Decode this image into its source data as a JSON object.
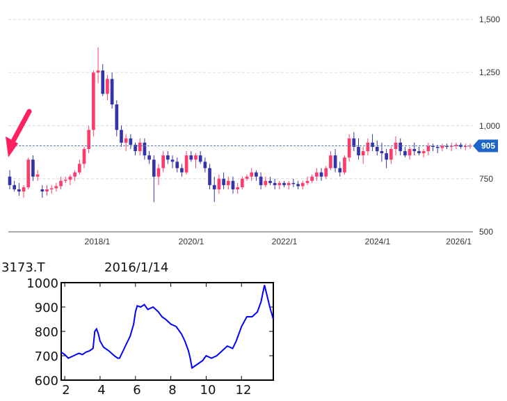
{
  "chart_data": [
    {
      "type": "candlestick",
      "x_ticks": [
        "2018/1",
        "2020/1",
        "2022/1",
        "2024/1",
        "2026/1"
      ],
      "y_ticks": [
        "1,500",
        "1,250",
        "1,000",
        "750",
        "500"
      ],
      "ylim": [
        500,
        1500
      ],
      "grid": true,
      "current_price_label": "905",
      "current_price": 905,
      "colors": {
        "up": "#ff3b6b",
        "down": "#3333aa",
        "current_line": "#4a7bd0",
        "badge": "#1f64c8",
        "arrow": "#ff2060"
      },
      "candles": [
        [
          760,
          790,
          700,
          720
        ],
        [
          720,
          740,
          690,
          700
        ],
        [
          700,
          730,
          670,
          690
        ],
        [
          690,
          720,
          660,
          710
        ],
        [
          710,
          850,
          700,
          840
        ],
        [
          840,
          860,
          740,
          760
        ],
        [
          760,
          790,
          740,
          770
        ],
        [
          700,
          720,
          660,
          690
        ],
        [
          690,
          720,
          670,
          700
        ],
        [
          700,
          720,
          680,
          705
        ],
        [
          705,
          730,
          690,
          715
        ],
        [
          715,
          760,
          700,
          740
        ],
        [
          740,
          760,
          730,
          745
        ],
        [
          745,
          770,
          720,
          760
        ],
        [
          760,
          790,
          740,
          780
        ],
        [
          780,
          840,
          770,
          820
        ],
        [
          820,
          900,
          800,
          890
        ],
        [
          890,
          1000,
          870,
          980
        ],
        [
          980,
          1260,
          950,
          1250
        ],
        [
          1250,
          1370,
          1200,
          1260
        ],
        [
          1260,
          1290,
          1140,
          1150
        ],
        [
          1150,
          1240,
          1120,
          1220
        ],
        [
          1220,
          1250,
          1080,
          1100
        ],
        [
          1100,
          1120,
          950,
          980
        ],
        [
          980,
          1000,
          900,
          920
        ],
        [
          920,
          960,
          880,
          940
        ],
        [
          940,
          960,
          890,
          910
        ],
        [
          910,
          920,
          860,
          880
        ],
        [
          880,
          940,
          860,
          920
        ],
        [
          920,
          940,
          840,
          860
        ],
        [
          860,
          880,
          820,
          840
        ],
        [
          840,
          860,
          640,
          760
        ],
        [
          760,
          820,
          720,
          800
        ],
        [
          800,
          880,
          780,
          860
        ],
        [
          860,
          880,
          820,
          840
        ],
        [
          840,
          860,
          800,
          830
        ],
        [
          830,
          850,
          780,
          800
        ],
        [
          800,
          820,
          760,
          780
        ],
        [
          780,
          880,
          770,
          860
        ],
        [
          860,
          880,
          830,
          840
        ],
        [
          840,
          870,
          800,
          860
        ],
        [
          860,
          880,
          820,
          830
        ],
        [
          830,
          850,
          780,
          800
        ],
        [
          800,
          820,
          700,
          720
        ],
        [
          720,
          760,
          640,
          700
        ],
        [
          700,
          770,
          680,
          750
        ],
        [
          750,
          780,
          700,
          720
        ],
        [
          720,
          760,
          700,
          740
        ],
        [
          740,
          760,
          680,
          700
        ],
        [
          700,
          730,
          680,
          710
        ],
        [
          710,
          760,
          700,
          750
        ],
        [
          750,
          770,
          740,
          760
        ],
        [
          760,
          800,
          740,
          780
        ],
        [
          780,
          790,
          740,
          760
        ],
        [
          760,
          780,
          700,
          720
        ],
        [
          720,
          760,
          710,
          740
        ],
        [
          740,
          760,
          720,
          730
        ],
        [
          730,
          750,
          700,
          720
        ],
        [
          720,
          740,
          700,
          730
        ],
        [
          730,
          740,
          710,
          720
        ],
        [
          720,
          740,
          700,
          730
        ],
        [
          730,
          750,
          710,
          725
        ],
        [
          725,
          740,
          700,
          715
        ],
        [
          715,
          740,
          700,
          730
        ],
        [
          730,
          760,
          720,
          740
        ],
        [
          740,
          770,
          730,
          760
        ],
        [
          760,
          800,
          740,
          780
        ],
        [
          780,
          800,
          740,
          760
        ],
        [
          760,
          810,
          750,
          800
        ],
        [
          800,
          880,
          790,
          860
        ],
        [
          860,
          890,
          780,
          800
        ],
        [
          800,
          830,
          760,
          780
        ],
        [
          780,
          860,
          770,
          850
        ],
        [
          850,
          960,
          830,
          940
        ],
        [
          940,
          970,
          880,
          900
        ],
        [
          900,
          940,
          840,
          860
        ],
        [
          860,
          900,
          820,
          880
        ],
        [
          880,
          940,
          860,
          920
        ],
        [
          920,
          960,
          880,
          900
        ],
        [
          900,
          930,
          860,
          880
        ],
        [
          880,
          920,
          830,
          870
        ],
        [
          870,
          890,
          800,
          840
        ],
        [
          840,
          900,
          820,
          890
        ],
        [
          890,
          950,
          860,
          920
        ],
        [
          920,
          940,
          860,
          880
        ],
        [
          880,
          900,
          850,
          860
        ],
        [
          860,
          900,
          840,
          890
        ],
        [
          890,
          920,
          860,
          880
        ],
        [
          880,
          900,
          860,
          870
        ],
        [
          870,
          890,
          850,
          880
        ],
        [
          880,
          920,
          860,
          905
        ],
        [
          905,
          915,
          880,
          900
        ],
        [
          900,
          910,
          870,
          895
        ],
        [
          895,
          915,
          880,
          905
        ],
        [
          905,
          915,
          890,
          900
        ],
        [
          900,
          920,
          880,
          905
        ],
        [
          905,
          920,
          890,
          910
        ],
        [
          910,
          920,
          890,
          900
        ],
        [
          900,
          915,
          885,
          905
        ],
        [
          905,
          915,
          890,
          905
        ]
      ]
    },
    {
      "type": "line",
      "code": "3173.T",
      "date": "2016/1/14",
      "x_ticks": [
        "2",
        "4",
        "6",
        "8",
        "10",
        "12"
      ],
      "y_ticks": [
        "1000",
        "900",
        "800",
        "700",
        "600"
      ],
      "ylim": [
        600,
        1000
      ],
      "xlim": [
        1.8,
        13.8
      ],
      "color": "#0000ff",
      "x": [
        1.8,
        2.0,
        2.2,
        2.5,
        2.8,
        3.0,
        3.2,
        3.4,
        3.6,
        3.7,
        3.8,
        3.9,
        4.0,
        4.2,
        4.5,
        4.8,
        5.0,
        5.1,
        5.3,
        5.5,
        5.7,
        5.9,
        6.0,
        6.1,
        6.3,
        6.5,
        6.7,
        7.0,
        7.3,
        7.5,
        7.7,
        8.0,
        8.3,
        8.6,
        8.8,
        9.0,
        9.1,
        9.2,
        9.4,
        9.6,
        9.8,
        10.0,
        10.3,
        10.6,
        10.9,
        11.2,
        11.5,
        11.7,
        12.0,
        12.3,
        12.6,
        12.9,
        13.1,
        13.3,
        13.5,
        13.6,
        13.8
      ],
      "y": [
        715,
        705,
        690,
        700,
        710,
        705,
        715,
        720,
        730,
        800,
        810,
        790,
        760,
        735,
        720,
        700,
        690,
        690,
        720,
        750,
        780,
        830,
        880,
        905,
        900,
        910,
        890,
        900,
        880,
        860,
        850,
        830,
        820,
        790,
        760,
        720,
        690,
        650,
        660,
        670,
        680,
        700,
        690,
        700,
        720,
        740,
        730,
        760,
        820,
        860,
        860,
        880,
        920,
        990,
        930,
        900,
        850
      ]
    }
  ]
}
